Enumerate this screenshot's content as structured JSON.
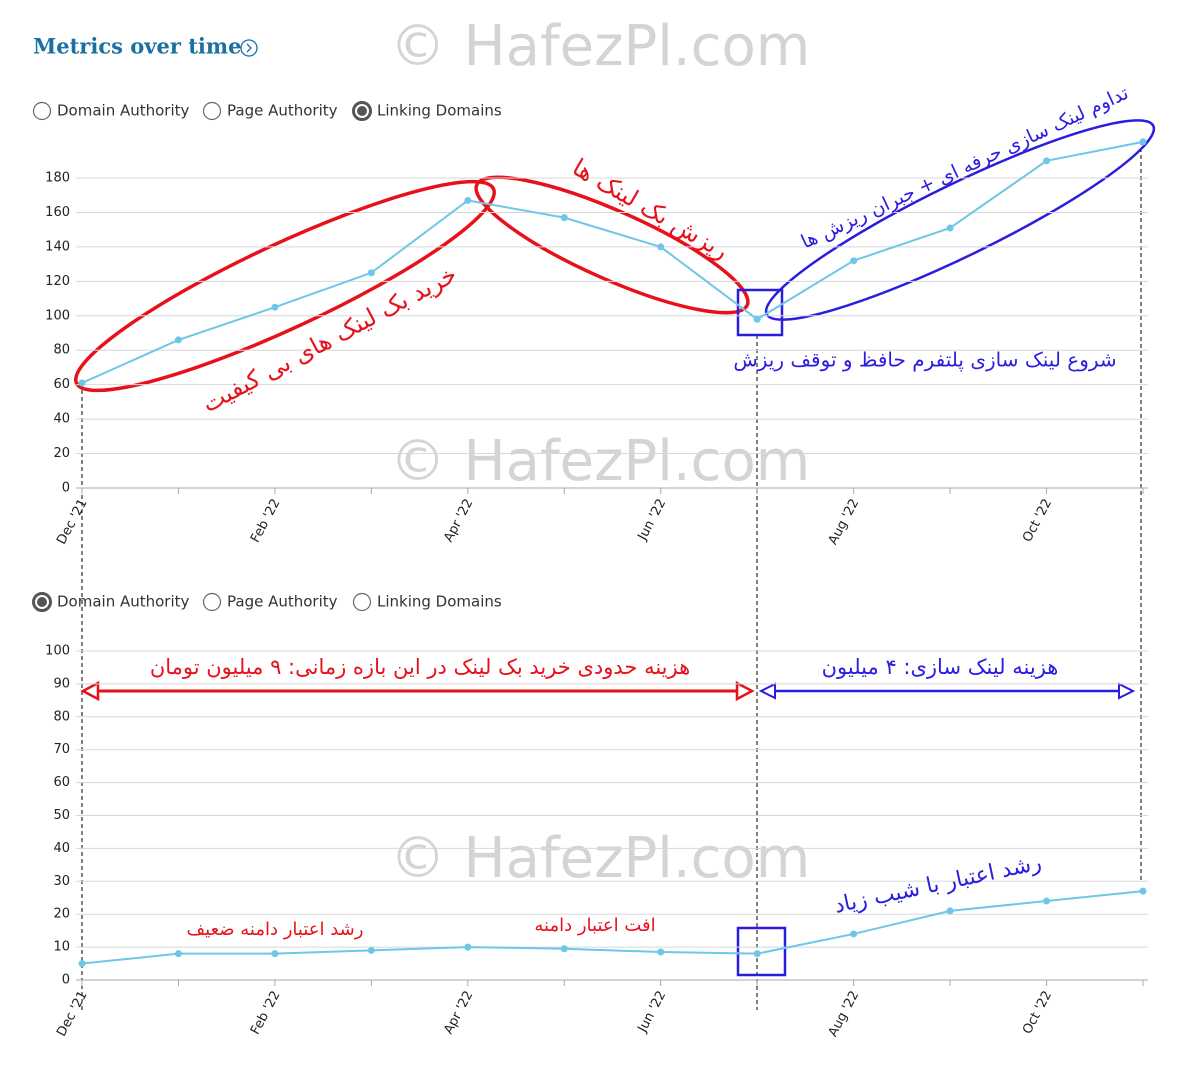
{
  "header": {
    "title": "Metrics over time"
  },
  "watermark": "© HafezPl.com",
  "chart_data": [
    {
      "type": "line",
      "options": [
        "Domain Authority",
        "Page Authority",
        "Linking Domains"
      ],
      "selected": 2,
      "categories": [
        "Dec '21",
        null,
        "Feb '22",
        null,
        "Apr '22",
        null,
        "Jun '22",
        null,
        "Aug '22",
        null,
        "Oct '22",
        null
      ],
      "values": [
        61,
        86,
        105,
        125,
        167,
        157,
        140,
        98,
        132,
        151,
        190,
        201
      ],
      "color": "#6ec6e8",
      "ylim": [
        0,
        205
      ],
      "yticks": [
        0,
        20,
        40,
        60,
        80,
        100,
        120,
        140,
        160,
        180
      ],
      "grid": true,
      "annotations": [
        "خرید بک لینک های بی کیفیت",
        "ریزش بک لینک ها",
        "تداوم لینک سازی حرفه ای + جبران ریزش ها",
        "شروع لینک سازی پلتفرم حافظ و توقف ریزش"
      ]
    },
    {
      "type": "line",
      "options": [
        "Domain Authority",
        "Page Authority",
        "Linking Domains"
      ],
      "selected": 0,
      "categories": [
        "Dec '21",
        null,
        "Feb '22",
        null,
        "Apr '22",
        null,
        "Jun '22",
        null,
        "Aug '22",
        null,
        "Oct '22",
        null
      ],
      "values": [
        5,
        8,
        8,
        9,
        10,
        9.5,
        8.5,
        8,
        14,
        21,
        24,
        27
      ],
      "color": "#6ec6e8",
      "ylim": [
        0,
        100
      ],
      "yticks": [
        0,
        10,
        20,
        30,
        40,
        50,
        60,
        70,
        80,
        90,
        100
      ],
      "grid": true,
      "annotations": [
        "هزینه حدودی خرید بک لینک در این بازه زمانی: ۹ میلیون تومان",
        "هزینه لینک سازی: ۴ میلیون",
        "رشد اعتبار دامنه ضعیف",
        "افت اعتبار دامنه",
        "رشد اعتبار با شیب زیاد"
      ]
    }
  ]
}
